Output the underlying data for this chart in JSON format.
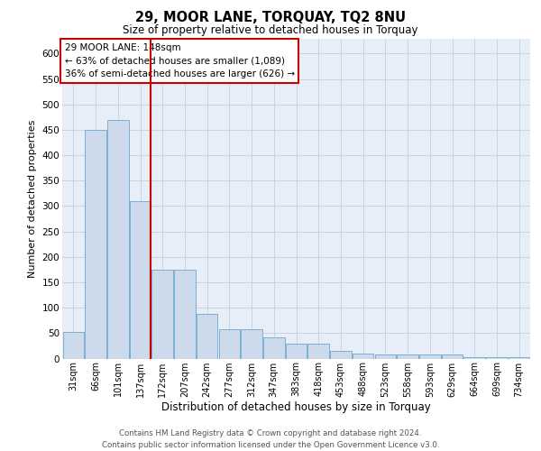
{
  "title1": "29, MOOR LANE, TORQUAY, TQ2 8NU",
  "title2": "Size of property relative to detached houses in Torquay",
  "xlabel": "Distribution of detached houses by size in Torquay",
  "ylabel": "Number of detached properties",
  "categories": [
    "31sqm",
    "66sqm",
    "101sqm",
    "137sqm",
    "172sqm",
    "207sqm",
    "242sqm",
    "277sqm",
    "312sqm",
    "347sqm",
    "383sqm",
    "418sqm",
    "453sqm",
    "488sqm",
    "523sqm",
    "558sqm",
    "593sqm",
    "629sqm",
    "664sqm",
    "699sqm",
    "734sqm"
  ],
  "values": [
    52,
    450,
    470,
    310,
    175,
    175,
    88,
    58,
    58,
    42,
    30,
    30,
    15,
    10,
    8,
    8,
    8,
    8,
    3,
    3,
    3
  ],
  "bar_color": "#ccdaeb",
  "bar_edge_color": "#7aafd4",
  "vline_idx": 3.45,
  "vline_color": "#cc0000",
  "annotation_line1": "29 MOOR LANE: 148sqm",
  "annotation_line2": "← 63% of detached houses are smaller (1,089)",
  "annotation_line3": "36% of semi-detached houses are larger (626) →",
  "annotation_box_edge_color": "#cc0000",
  "ylim_max": 630,
  "yticks": [
    0,
    50,
    100,
    150,
    200,
    250,
    300,
    350,
    400,
    450,
    500,
    550,
    600
  ],
  "grid_color": "#c0cfe0",
  "bg_color": "#e8eef8",
  "footer1": "Contains HM Land Registry data © Crown copyright and database right 2024.",
  "footer2": "Contains public sector information licensed under the Open Government Licence v3.0."
}
